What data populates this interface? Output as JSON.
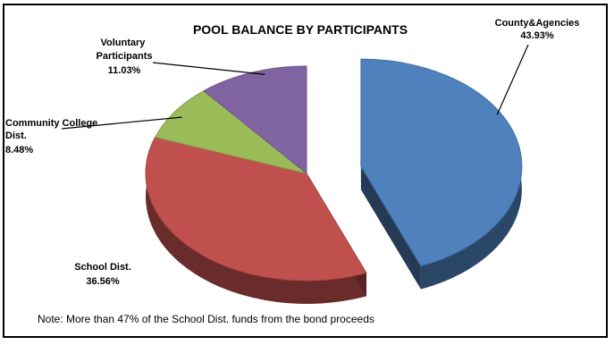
{
  "chart_data": {
    "type": "pie",
    "title": "POOL BALANCE BY PARTICIPANTS",
    "slices": [
      {
        "name": "County&Agencies",
        "value": 43.93,
        "label": "43.93%",
        "color": "#4f81bd",
        "exploded": true
      },
      {
        "name": "School Dist.",
        "value": 36.56,
        "label": "36.56%",
        "color": "#c0504d",
        "exploded": false
      },
      {
        "name": "Community College Dist.",
        "value": 8.48,
        "label": "8.48%",
        "color": "#9bbb59",
        "exploded": false
      },
      {
        "name": "Voluntary Participants",
        "value": 11.03,
        "label": "11.03%",
        "color": "#8064a2",
        "exploded": false
      }
    ],
    "legend": "none",
    "note": "Note: More than 47% of the School Dist. funds from the bond proceeds"
  }
}
